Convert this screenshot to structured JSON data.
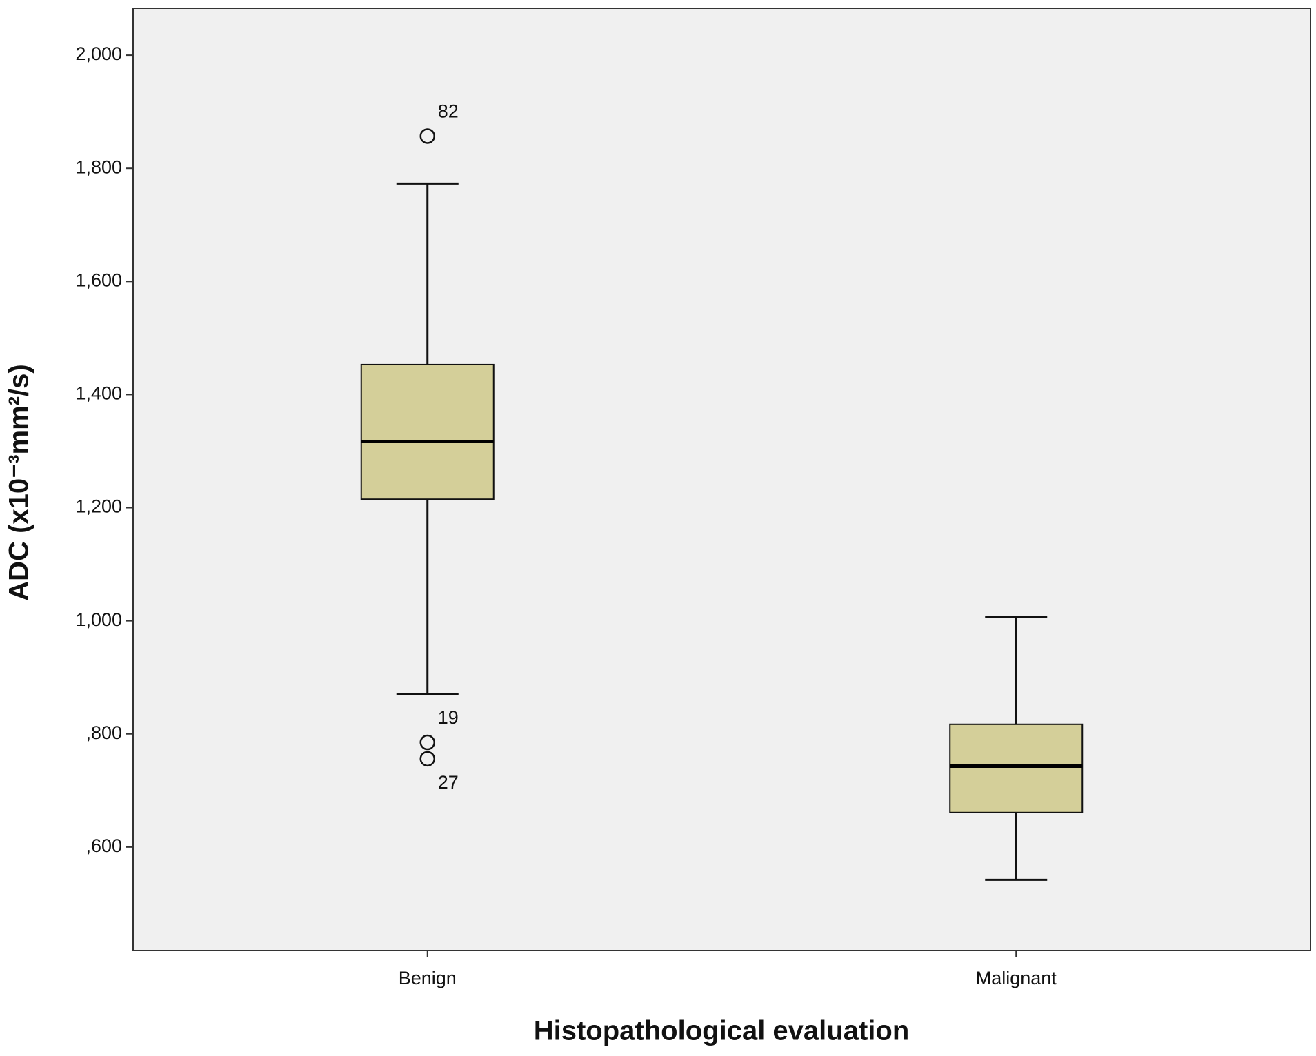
{
  "chart_data": {
    "type": "box",
    "x_label": "Histopathological evaluation",
    "y_label": "ADC (x10⁻³mm²/s)",
    "categories": [
      "Benign",
      "Malignant"
    ],
    "color": "#d4cf99",
    "boxes": [
      {
        "whislo": 871,
        "q1": 1215,
        "med": 1317,
        "q3": 1453,
        "whishi": 1773,
        "fliers": [
          {
            "value": 1857,
            "label": "82"
          },
          {
            "value": 785,
            "label": "19"
          },
          {
            "value": 756,
            "label": "27"
          }
        ]
      },
      {
        "whislo": 542,
        "q1": 661,
        "med": 743,
        "q3": 817,
        "whishi": 1007,
        "fliers": []
      }
    ],
    "ylim": [
      417,
      2083
    ],
    "yticks": [
      {
        "value": 600,
        "label": ",600"
      },
      {
        "value": 800,
        "label": ",800"
      },
      {
        "value": 1000,
        "label": "1,000"
      },
      {
        "value": 1200,
        "label": "1,200"
      },
      {
        "value": 1400,
        "label": "1,400"
      },
      {
        "value": 1600,
        "label": "1,600"
      },
      {
        "value": 1800,
        "label": "1,800"
      },
      {
        "value": 2000,
        "label": "2,000"
      }
    ],
    "grid": false
  }
}
